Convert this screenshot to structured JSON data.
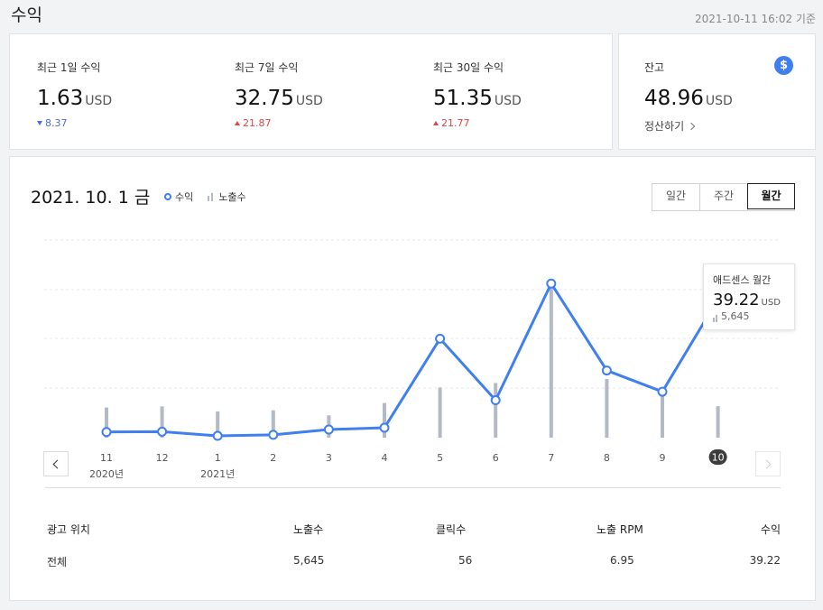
{
  "header": {
    "title": "수익",
    "updated": "2021-10-11 16:02 기준"
  },
  "summary": [
    {
      "label": "최근 1일 수익",
      "value": "1.63",
      "unit": "USD",
      "direction": "down",
      "change": "8.37"
    },
    {
      "label": "최근 7일 수익",
      "value": "32.75",
      "unit": "USD",
      "direction": "up",
      "change": "21.87"
    },
    {
      "label": "최근 30일 수익",
      "value": "51.35",
      "unit": "USD",
      "direction": "up",
      "change": "21.77"
    }
  ],
  "balance": {
    "label": "잔고",
    "value": "48.96",
    "unit": "USD",
    "settle_label": "정산하기",
    "icon": "dollar-icon",
    "icon_glyph": "$"
  },
  "chart": {
    "date_label": "2021. 10. 1 금",
    "legend": {
      "revenue": "수익",
      "impressions": "노출수"
    },
    "tabs": [
      {
        "label": "일간",
        "active": false
      },
      {
        "label": "주간",
        "active": false
      },
      {
        "label": "월간",
        "active": true
      }
    ],
    "tooltip": {
      "title": "애드센스 월간",
      "value": "39.22",
      "unit": "USD",
      "impressions": "5,645"
    }
  },
  "colors": {
    "accent": "#3f7ff0",
    "bar": "#b4bac4",
    "up": "#e04545",
    "down": "#4a6fd8"
  },
  "chart_data": {
    "type": "line",
    "title": "",
    "xlabel": "",
    "ylabel": "",
    "categories": [
      "11",
      "12",
      "1",
      "2",
      "3",
      "4",
      "5",
      "6",
      "7",
      "8",
      "9",
      "10"
    ],
    "year_labels": [
      {
        "at": "11",
        "label": "2020년"
      },
      {
        "at": "1",
        "label": "2021년"
      }
    ],
    "selected": "10",
    "series": [
      {
        "name": "수익",
        "kind": "line",
        "values": [
          1.6,
          1.7,
          0.5,
          0.8,
          2.3,
          2.8,
          28.0,
          10.6,
          43.6,
          19.0,
          13.0,
          39.22
        ]
      },
      {
        "name": "노출수",
        "kind": "bar",
        "values": [
          5400,
          5600,
          4700,
          4900,
          4000,
          6200,
          9000,
          9800,
          27500,
          10500,
          8100,
          5645
        ]
      }
    ],
    "ylim_revenue": [
      0,
      60
    ],
    "ylim_impressions": [
      0,
      38000
    ],
    "grid": true
  },
  "table": {
    "headers": [
      "광고 위치",
      "노출수",
      "클릭수",
      "노출 RPM",
      "수익"
    ],
    "rows": [
      [
        "전체",
        "5,645",
        "56",
        "6.95",
        "39.22"
      ]
    ]
  }
}
